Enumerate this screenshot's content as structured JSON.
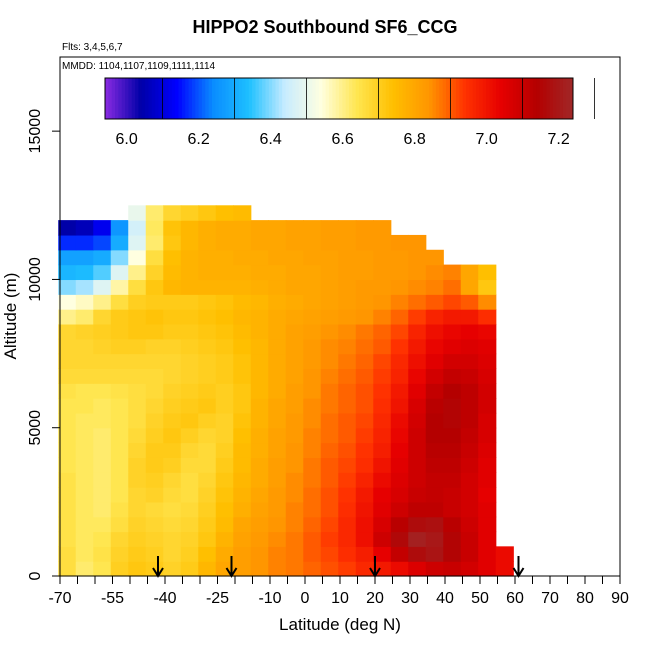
{
  "chart_data": {
    "type": "heatmap",
    "title": "HIPPO2 Southbound SF6_CCG",
    "subtitle_flights": "Flts: 3,4,5,6,7",
    "subtitle_dates": "MMDD: 1104,1107,1109,1111,1114",
    "xlabel": "Latitude (deg N)",
    "ylabel": "Altitude (m)",
    "xlim": [
      -70,
      90
    ],
    "ylim": [
      0,
      17500
    ],
    "x_tick_labels": [
      "-70",
      "-55",
      "-40",
      "-25",
      "-10",
      "0",
      "10",
      "20",
      "30",
      "40",
      "50",
      "60",
      "70",
      "80",
      "90"
    ],
    "x_tick_values": [
      -70,
      -55,
      -40,
      -25,
      -10,
      0,
      10,
      20,
      30,
      40,
      50,
      60,
      70,
      80,
      90
    ],
    "x_minor_ticks": [
      -65,
      -60,
      -50,
      -45,
      -35,
      -30,
      -20,
      -15,
      -5,
      5,
      15,
      25,
      35,
      45,
      55,
      65,
      75,
      85
    ],
    "y_tick_labels": [
      "0",
      "5000",
      "10000",
      "15000"
    ],
    "y_tick_values": [
      0,
      5000,
      10000,
      15000
    ],
    "colorbar": {
      "range": [
        5.94,
        7.24
      ],
      "tick_labels": [
        "6.0",
        "6.2",
        "6.4",
        "6.6",
        "6.8",
        "7.0",
        "7.2"
      ],
      "tick_values": [
        6.0,
        6.2,
        6.4,
        6.6,
        6.8,
        7.0,
        7.2
      ],
      "colors": [
        "#8a2be2",
        "#0000a8",
        "#0000ff",
        "#0a8cff",
        "#1ec0ff",
        "#c8ecff",
        "#ffffe0",
        "#ffe650",
        "#ffbf00",
        "#ff9600",
        "#ff3200",
        "#e60000",
        "#b40000",
        "#a02828"
      ]
    },
    "profile_markers_lat": [
      -42,
      -21,
      20,
      61
    ],
    "latitude_bins": [
      -68,
      -63,
      -58,
      -53,
      -48,
      -43,
      -38,
      -33,
      -28,
      -23,
      -18,
      -13,
      -8,
      -3,
      2,
      7,
      12,
      17,
      22,
      27,
      32,
      37,
      42,
      47,
      52,
      57
    ],
    "altitude_bins": [
      250,
      750,
      1250,
      1750,
      2250,
      2750,
      3250,
      3750,
      4250,
      4750,
      5250,
      5750,
      6250,
      6750,
      7250,
      7750,
      8250,
      8750,
      9250,
      9750,
      10250,
      10750,
      11250,
      11750,
      12250,
      12750
    ],
    "values": [
      [
        6.66,
        6.62,
        6.64,
        6.7,
        6.72,
        6.71,
        6.69,
        6.71,
        6.76,
        6.8,
        6.82,
        6.84,
        6.86,
        6.87,
        6.89,
        6.91,
        6.93,
        6.96,
        6.99,
        7.02,
        7.06,
        7.09,
        7.1,
        7.08,
        7.05,
        7.02
      ],
      [
        6.66,
        6.63,
        6.65,
        6.69,
        6.71,
        6.7,
        6.68,
        6.7,
        6.74,
        6.79,
        6.82,
        6.84,
        6.86,
        6.87,
        6.9,
        6.92,
        6.95,
        6.98,
        7.04,
        7.11,
        7.17,
        7.19,
        7.15,
        7.1,
        7.05,
        7.02
      ],
      [
        6.65,
        6.63,
        6.64,
        6.68,
        6.7,
        6.69,
        6.68,
        6.69,
        6.72,
        6.77,
        6.81,
        6.83,
        6.85,
        6.87,
        6.9,
        6.93,
        6.96,
        7.01,
        7.09,
        7.16,
        7.22,
        7.2,
        7.15,
        7.1,
        7.05,
        null
      ],
      [
        6.65,
        6.63,
        6.63,
        6.66,
        6.69,
        6.68,
        6.67,
        6.68,
        6.71,
        6.75,
        6.8,
        6.82,
        6.84,
        6.86,
        6.89,
        6.92,
        6.96,
        7.01,
        7.07,
        7.13,
        7.17,
        7.18,
        7.13,
        7.09,
        7.05,
        null
      ],
      [
        6.65,
        6.63,
        6.62,
        6.65,
        6.68,
        6.67,
        6.66,
        6.67,
        6.7,
        6.74,
        6.78,
        6.81,
        6.83,
        6.86,
        6.88,
        6.91,
        6.95,
        7.0,
        7.05,
        7.09,
        7.12,
        7.12,
        7.1,
        7.08,
        7.05,
        null
      ],
      [
        6.65,
        6.63,
        6.62,
        6.64,
        6.68,
        6.69,
        6.67,
        6.66,
        6.69,
        6.73,
        6.77,
        6.8,
        6.83,
        6.85,
        6.88,
        6.91,
        6.94,
        6.99,
        7.04,
        7.07,
        7.1,
        7.11,
        7.1,
        7.08,
        7.04,
        null
      ],
      [
        6.65,
        6.63,
        6.62,
        6.64,
        6.69,
        6.7,
        6.68,
        6.66,
        6.68,
        6.72,
        6.76,
        6.79,
        6.82,
        6.85,
        6.87,
        6.9,
        6.93,
        6.97,
        7.02,
        7.06,
        7.09,
        7.11,
        7.11,
        7.08,
        7.05,
        null
      ],
      [
        6.64,
        6.63,
        6.62,
        6.64,
        6.69,
        6.71,
        6.7,
        6.67,
        6.67,
        6.71,
        6.75,
        6.79,
        6.82,
        6.84,
        6.87,
        6.9,
        6.92,
        6.95,
        7.0,
        7.05,
        7.09,
        7.12,
        7.12,
        7.09,
        7.05,
        null
      ],
      [
        6.64,
        6.63,
        6.62,
        6.64,
        6.68,
        6.71,
        6.71,
        6.68,
        6.67,
        6.7,
        6.75,
        6.78,
        6.81,
        6.84,
        6.86,
        6.89,
        6.91,
        6.94,
        6.98,
        7.04,
        7.09,
        7.13,
        7.13,
        7.1,
        7.06,
        null
      ],
      [
        6.64,
        6.63,
        6.62,
        6.64,
        6.67,
        6.7,
        6.72,
        6.7,
        6.68,
        6.69,
        6.74,
        6.78,
        6.81,
        6.83,
        6.86,
        6.88,
        6.9,
        6.93,
        6.97,
        7.03,
        7.09,
        7.14,
        7.14,
        7.11,
        7.07,
        null
      ],
      [
        6.64,
        6.63,
        6.63,
        6.64,
        6.66,
        6.69,
        6.71,
        6.72,
        6.7,
        6.69,
        6.73,
        6.77,
        6.8,
        6.83,
        6.85,
        6.88,
        6.9,
        6.92,
        6.96,
        7.02,
        7.08,
        7.14,
        7.15,
        7.12,
        7.07,
        null
      ],
      [
        6.64,
        6.64,
        6.63,
        6.64,
        6.66,
        6.68,
        6.7,
        6.71,
        6.72,
        6.7,
        6.72,
        6.77,
        6.8,
        6.82,
        6.85,
        6.87,
        6.89,
        6.91,
        6.95,
        7.0,
        7.07,
        7.13,
        7.15,
        7.12,
        7.08,
        null
      ],
      [
        6.65,
        6.64,
        6.64,
        6.65,
        6.66,
        6.67,
        6.69,
        6.7,
        6.71,
        6.7,
        6.72,
        6.76,
        6.79,
        6.82,
        6.84,
        6.87,
        6.89,
        6.91,
        6.94,
        6.99,
        7.05,
        7.11,
        7.14,
        7.12,
        7.08,
        null
      ],
      [
        6.67,
        6.67,
        6.67,
        6.67,
        6.67,
        6.67,
        6.68,
        6.69,
        6.7,
        6.71,
        6.73,
        6.76,
        6.79,
        6.81,
        6.84,
        6.86,
        6.88,
        6.9,
        6.93,
        6.97,
        7.03,
        7.08,
        7.11,
        7.1,
        7.07,
        null
      ],
      [
        6.68,
        6.68,
        6.68,
        6.68,
        6.68,
        6.68,
        6.68,
        6.69,
        6.7,
        6.71,
        6.73,
        6.76,
        6.79,
        6.81,
        6.83,
        6.85,
        6.87,
        6.89,
        6.92,
        6.96,
        7.01,
        7.05,
        7.08,
        7.08,
        7.06,
        null
      ],
      [
        6.68,
        6.68,
        6.69,
        6.7,
        6.7,
        6.69,
        6.69,
        6.7,
        6.71,
        6.72,
        6.74,
        6.76,
        6.79,
        6.81,
        6.83,
        6.85,
        6.86,
        6.88,
        6.9,
        6.94,
        6.99,
        7.03,
        7.05,
        7.06,
        7.05,
        null
      ],
      [
        6.68,
        6.69,
        6.7,
        6.71,
        6.72,
        6.72,
        6.71,
        6.71,
        6.72,
        6.73,
        6.75,
        6.77,
        6.79,
        6.81,
        6.82,
        6.84,
        6.85,
        6.87,
        6.89,
        6.92,
        6.97,
        7.01,
        7.03,
        7.04,
        7.03,
        null
      ],
      [
        6.6,
        6.62,
        6.68,
        6.71,
        6.72,
        6.73,
        6.72,
        6.72,
        6.73,
        6.74,
        6.76,
        6.77,
        6.79,
        6.8,
        6.81,
        6.82,
        6.83,
        6.84,
        6.86,
        6.89,
        6.93,
        6.97,
        6.99,
        6.99,
        6.95,
        null
      ],
      [
        6.54,
        6.56,
        6.6,
        6.66,
        6.7,
        6.71,
        6.71,
        6.71,
        6.72,
        6.73,
        6.75,
        6.76,
        6.78,
        6.79,
        6.8,
        6.81,
        6.82,
        6.83,
        6.84,
        6.86,
        6.88,
        6.9,
        6.92,
        6.9,
        6.85,
        null
      ],
      [
        6.4,
        6.42,
        6.48,
        6.58,
        6.66,
        6.72,
        6.76,
        6.77,
        6.77,
        6.77,
        6.77,
        6.78,
        6.79,
        6.8,
        6.8,
        6.81,
        6.82,
        6.83,
        6.83,
        6.84,
        6.85,
        6.86,
        6.88,
        6.8,
        6.72,
        null
      ],
      [
        6.32,
        6.33,
        6.37,
        6.48,
        6.6,
        6.69,
        6.75,
        6.77,
        6.78,
        6.78,
        6.78,
        6.79,
        6.79,
        6.8,
        6.8,
        6.81,
        6.82,
        6.82,
        6.83,
        6.83,
        6.84,
        6.85,
        6.86,
        6.8,
        6.74,
        null
      ],
      [
        6.28,
        6.28,
        6.3,
        6.4,
        6.54,
        6.66,
        6.74,
        6.77,
        6.78,
        6.78,
        6.79,
        6.79,
        6.8,
        6.8,
        6.81,
        6.81,
        6.82,
        6.82,
        6.83,
        6.83,
        6.84,
        6.84,
        null,
        null,
        null,
        null
      ],
      [
        6.17,
        6.17,
        6.19,
        6.3,
        6.48,
        6.62,
        6.72,
        6.76,
        6.78,
        6.79,
        6.79,
        6.8,
        6.8,
        6.81,
        6.81,
        6.82,
        6.82,
        6.83,
        6.83,
        6.84,
        6.84,
        null,
        null,
        null,
        null,
        null
      ],
      [
        6.04,
        6.06,
        6.12,
        6.26,
        6.46,
        6.63,
        6.73,
        6.76,
        6.78,
        6.79,
        6.79,
        6.8,
        6.8,
        6.81,
        6.81,
        6.82,
        6.82,
        6.83,
        6.83,
        null,
        null,
        null,
        null,
        null,
        null,
        null
      ],
      [
        null,
        null,
        null,
        null,
        6.5,
        6.62,
        6.68,
        6.7,
        6.72,
        6.74,
        6.75,
        null,
        null,
        null,
        null,
        null,
        null,
        null,
        null,
        null,
        null,
        null,
        null,
        null,
        null,
        null
      ],
      [
        null,
        null,
        null,
        null,
        null,
        null,
        null,
        null,
        null,
        null,
        null,
        null,
        null,
        null,
        null,
        null,
        null,
        null,
        null,
        null,
        null,
        null,
        null,
        null,
        null,
        null
      ]
    ]
  }
}
